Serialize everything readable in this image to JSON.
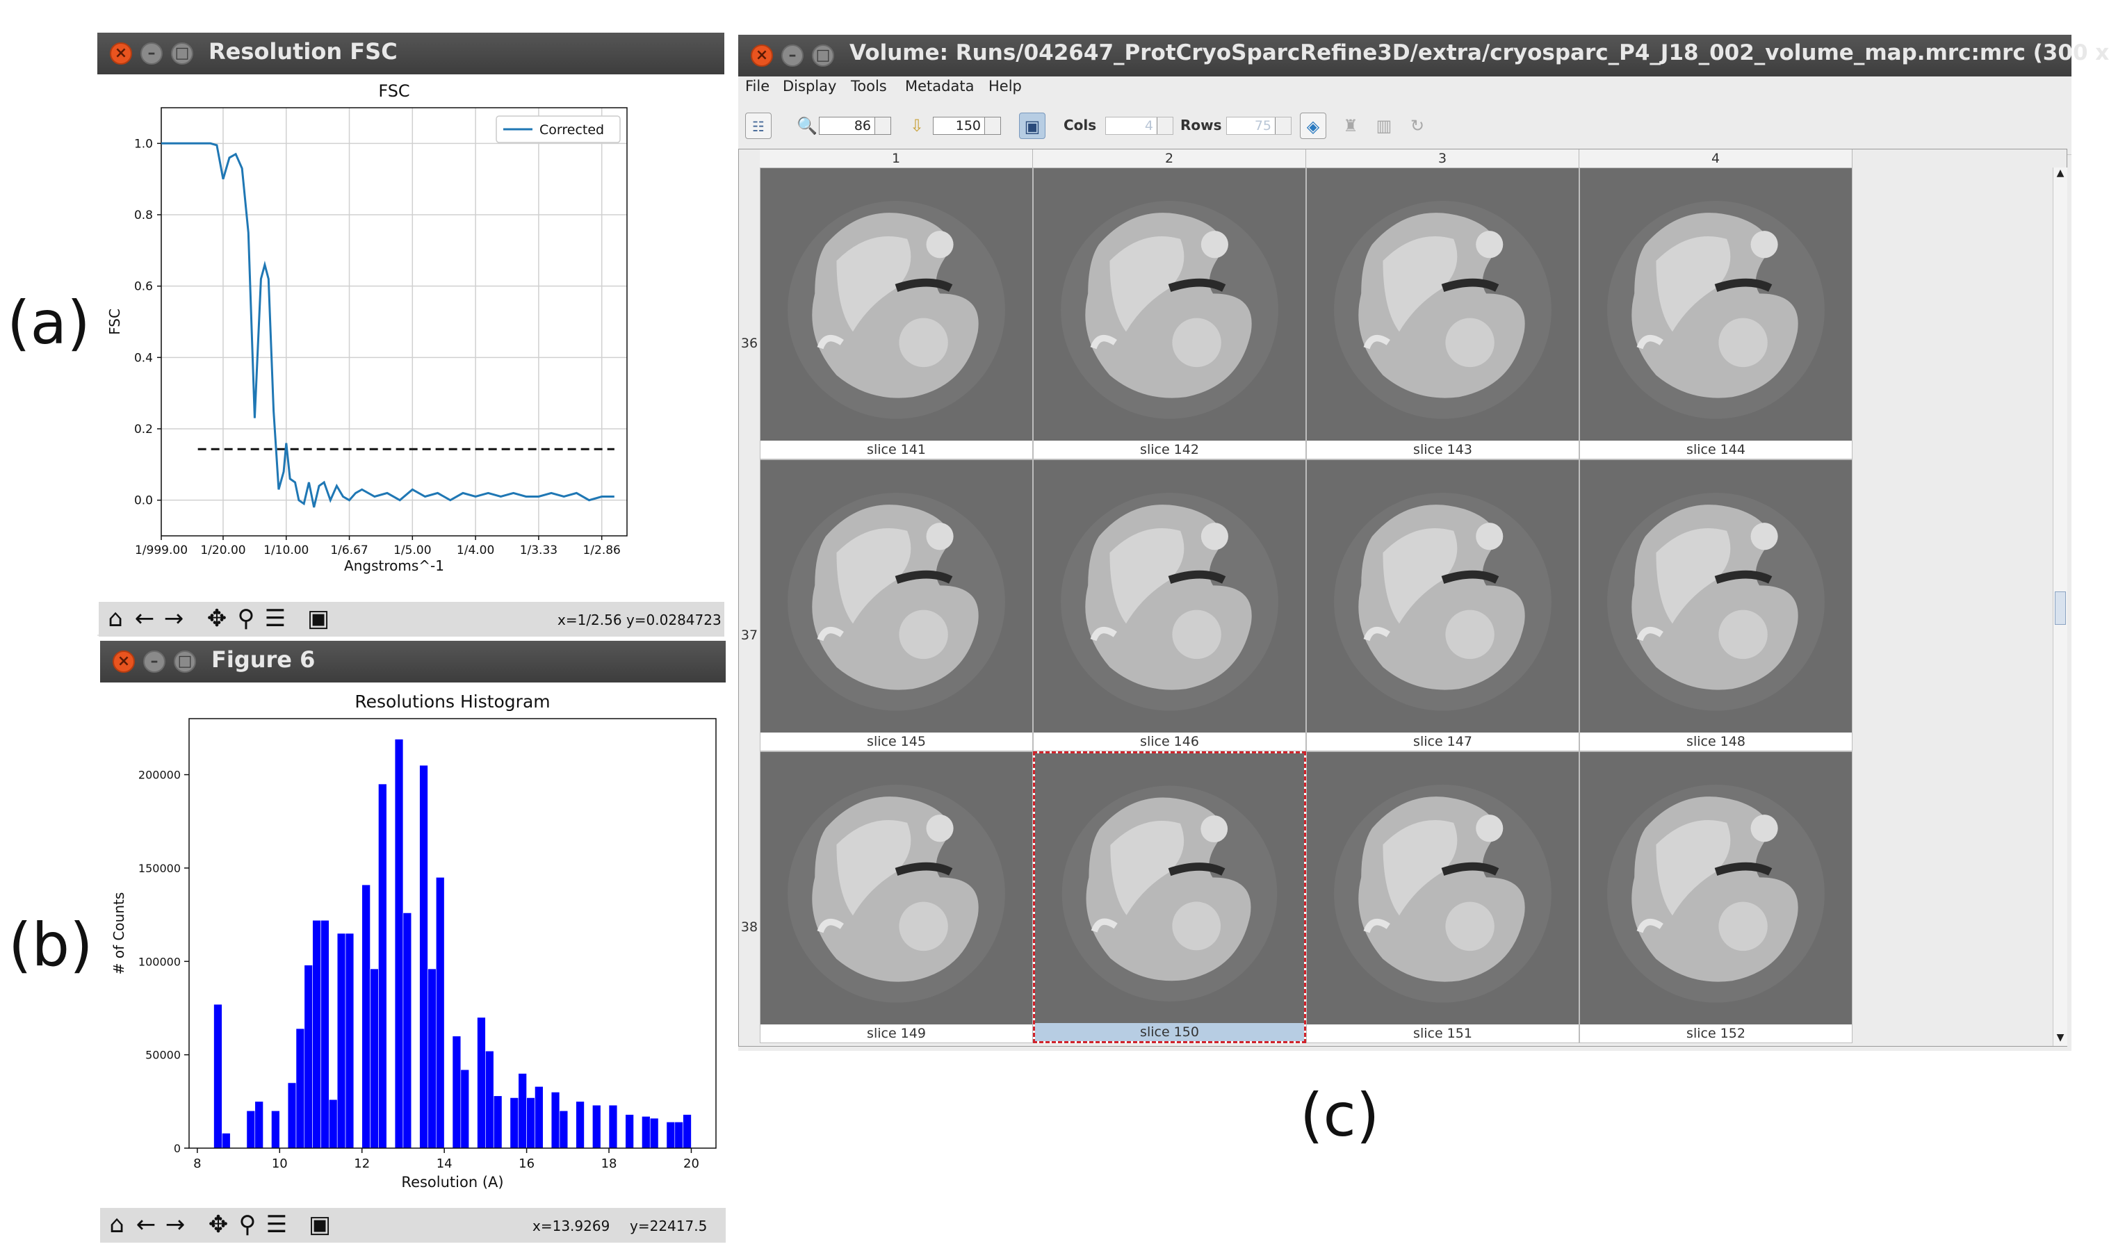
{
  "panel_labels": {
    "a": "(a)",
    "b": "(b)",
    "c": "(c)"
  },
  "fsc_window": {
    "title": "Resolution FSC",
    "coords": "x=1/2.56 y=0.0284723",
    "toolbar": [
      "home-icon",
      "back-icon",
      "forward-icon",
      "pan-icon",
      "zoom-icon",
      "configure-icon",
      "save-icon"
    ]
  },
  "hist_window": {
    "title": "Figure 6",
    "coords_x": "x=13.9269",
    "coords_y": "y=22417.5",
    "toolbar": [
      "home-icon",
      "back-icon",
      "forward-icon",
      "pan-icon",
      "zoom-icon",
      "configure-icon",
      "save-icon"
    ]
  },
  "chart_data": [
    {
      "type": "line",
      "title": "FSC",
      "xlabel": "Angstroms^-1",
      "ylabel": "FSC",
      "xlim": [
        0.001,
        0.37
      ],
      "ylim": [
        -0.1,
        1.1
      ],
      "xtick_labels": [
        "1/999.00",
        "1/20.00",
        "1/10.00",
        "1/6.67",
        "1/5.00",
        "1/4.00",
        "1/3.33",
        "1/2.86"
      ],
      "xtick_values": [
        0.001,
        0.05,
        0.1,
        0.15,
        0.2,
        0.25,
        0.3,
        0.35
      ],
      "ytick_values": [
        0.0,
        0.2,
        0.4,
        0.6,
        0.8,
        1.0
      ],
      "ytick_labels": [
        "0.0",
        "0.2",
        "0.4",
        "0.6",
        "0.8",
        "1.0"
      ],
      "grid": true,
      "legend": "top-right",
      "series": [
        {
          "name": "Corrected",
          "x": [
            0.001,
            0.02,
            0.04,
            0.045,
            0.05,
            0.055,
            0.06,
            0.065,
            0.07,
            0.075,
            0.08,
            0.083,
            0.086,
            0.09,
            0.094,
            0.098,
            0.1,
            0.103,
            0.107,
            0.11,
            0.114,
            0.118,
            0.122,
            0.126,
            0.13,
            0.135,
            0.14,
            0.145,
            0.15,
            0.155,
            0.16,
            0.17,
            0.18,
            0.19,
            0.2,
            0.21,
            0.22,
            0.23,
            0.24,
            0.25,
            0.26,
            0.27,
            0.28,
            0.29,
            0.3,
            0.31,
            0.32,
            0.33,
            0.34,
            0.35,
            0.36
          ],
          "y": [
            1.0,
            1.0,
            1.0,
            0.995,
            0.9,
            0.96,
            0.97,
            0.93,
            0.75,
            0.23,
            0.62,
            0.66,
            0.62,
            0.25,
            0.03,
            0.08,
            0.16,
            0.06,
            0.05,
            0.0,
            -0.01,
            0.05,
            -0.02,
            0.04,
            0.05,
            0.0,
            0.04,
            0.01,
            0.0,
            0.02,
            0.03,
            0.01,
            0.02,
            0.0,
            0.03,
            0.01,
            0.02,
            0.0,
            0.02,
            0.01,
            0.02,
            0.01,
            0.02,
            0.01,
            0.01,
            0.02,
            0.01,
            0.02,
            0.0,
            0.01,
            0.01
          ]
        }
      ],
      "threshold": {
        "y": 0.143,
        "style": "dashed"
      }
    },
    {
      "type": "bar",
      "title": "Resolutions Histogram",
      "xlabel": "Resolution (A)",
      "ylabel": "# of Counts",
      "xlim": [
        7.8,
        20.6
      ],
      "ylim": [
        0,
        230000
      ],
      "xticks": [
        8,
        10,
        12,
        14,
        16,
        18,
        20
      ],
      "yticks": [
        0,
        50000,
        100000,
        150000,
        200000
      ],
      "bin_width": 0.2,
      "bin_starts": [
        8.4,
        8.6,
        8.8,
        9.0,
        9.2,
        9.4,
        9.6,
        9.8,
        10.0,
        10.2,
        10.4,
        10.6,
        10.8,
        11.0,
        11.2,
        11.4,
        11.6,
        11.8,
        12.0,
        12.2,
        12.4,
        12.6,
        12.8,
        13.0,
        13.2,
        13.4,
        13.6,
        13.8,
        14.0,
        14.2,
        14.4,
        14.6,
        14.8,
        15.0,
        15.2,
        15.4,
        15.6,
        15.8,
        16.0,
        16.2,
        16.4,
        16.6,
        16.8,
        17.0,
        17.2,
        17.4,
        17.6,
        17.8,
        18.0,
        18.2,
        18.4,
        18.6,
        18.8,
        19.0,
        19.2,
        19.4,
        19.6,
        19.8
      ],
      "values": [
        77000,
        8000,
        0,
        0,
        20000,
        25000,
        0,
        20000,
        0,
        35000,
        64000,
        98000,
        122000,
        122000,
        26000,
        115000,
        115000,
        0,
        141000,
        96000,
        195000,
        0,
        219000,
        126000,
        0,
        205000,
        96000,
        145000,
        0,
        60000,
        42000,
        0,
        70000,
        52000,
        28000,
        0,
        27000,
        40000,
        27000,
        33000,
        0,
        30000,
        20000,
        0,
        25000,
        0,
        23000,
        0,
        23000,
        0,
        18000,
        0,
        17000,
        16000,
        0,
        14000,
        14000,
        18000
      ]
    }
  ],
  "volume_window": {
    "title": "Volume: Runs/042647_ProtCryoSparcRefine3D/extra/cryosparc_P4_J18_002_volume_map.mrc:mrc (300 x",
    "menu": [
      "File",
      "Display",
      "Tools",
      "Metadata",
      "Help"
    ],
    "zoom_value": "86",
    "goto_value": "150",
    "cols_label": "Cols",
    "cols_value": "4",
    "rows_label": "Rows",
    "rows_value": "75",
    "col_headers": [
      "1",
      "2",
      "3",
      "4"
    ],
    "row_headers": [
      "36",
      "37",
      "38"
    ],
    "slices": [
      "slice 141",
      "slice 142",
      "slice 143",
      "slice 144",
      "slice 145",
      "slice 146",
      "slice 147",
      "slice 148",
      "slice 149",
      "slice 150",
      "slice 151",
      "slice 152"
    ],
    "selected_slice": "slice 150"
  }
}
